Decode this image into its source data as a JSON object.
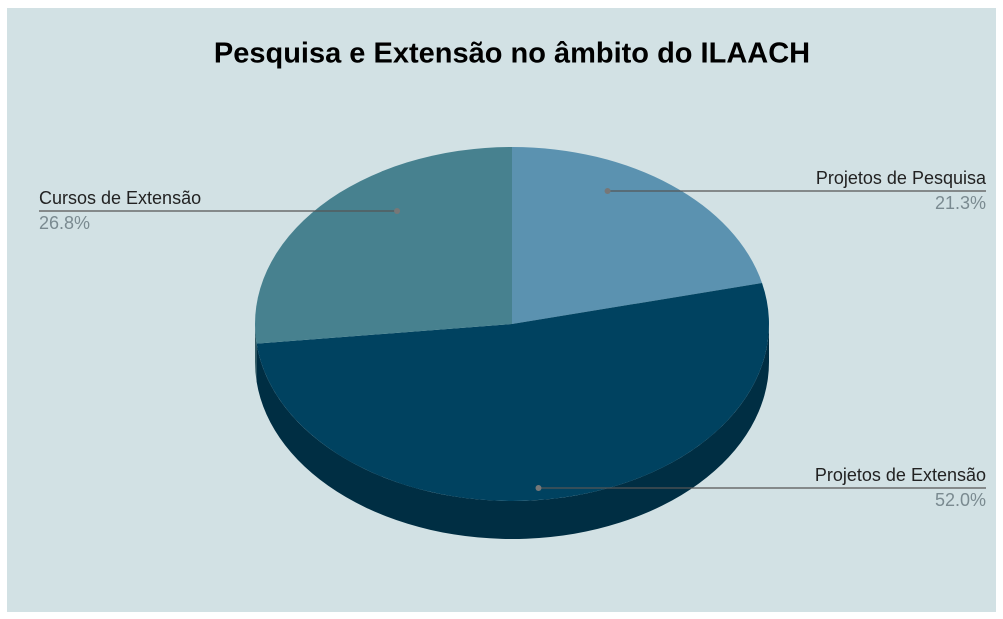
{
  "chart_data": {
    "type": "pie3d",
    "title": "Pesquisa e Extensão no âmbito do ILAACH",
    "categories": [
      "Projetos de Pesquisa",
      "Projetos de Extensão",
      "Cursos de Extensão"
    ],
    "values": [
      21.3,
      52.0,
      26.8
    ],
    "value_labels": [
      "21.3%",
      "52.0%",
      "26.8%"
    ],
    "colors": [
      "#5b92b0",
      "#004260",
      "#47818f"
    ]
  }
}
